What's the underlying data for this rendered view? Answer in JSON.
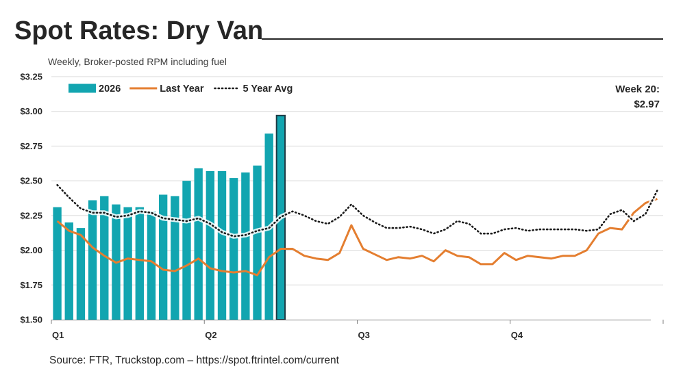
{
  "title": "Spot Rates: Dry Van",
  "subtitle": "Weekly, Broker-posted RPM including fuel",
  "source": "Source: FTR, Truckstop.com – https://spot.ftrintel.com/current",
  "callout": {
    "line1": "Week 20:",
    "line2": "$2.97"
  },
  "chart_data": {
    "type": "bar",
    "xlabel": "",
    "ylabel": "",
    "ylim": [
      1.5,
      3.25
    ],
    "yticks": [
      "$1.50",
      "$1.75",
      "$2.00",
      "$2.25",
      "$2.50",
      "$2.75",
      "$3.00",
      "$3.25"
    ],
    "ytick_values": [
      1.5,
      1.75,
      2.0,
      2.25,
      2.5,
      2.75,
      3.0,
      3.25
    ],
    "xlim": [
      0.5,
      52.5
    ],
    "quarters": [
      {
        "label": "Q1",
        "week": 1
      },
      {
        "label": "Q2",
        "week": 14
      },
      {
        "label": "Q3",
        "week": 27
      },
      {
        "label": "Q4",
        "week": 40
      }
    ],
    "grid": true,
    "legend_position": "top-left",
    "colors": {
      "bars": "#12A5B0",
      "highlight_border": "#1F3A44",
      "last_year": "#E47E30",
      "five_year": "#1A1A1A",
      "grid": "#D9D9D9"
    },
    "series": [
      {
        "name": "2026",
        "kind": "bar",
        "x_start": 1,
        "values": [
          2.31,
          2.2,
          2.16,
          2.36,
          2.39,
          2.33,
          2.31,
          2.31,
          2.28,
          2.4,
          2.39,
          2.5,
          2.59,
          2.57,
          2.57,
          2.52,
          2.56,
          2.61,
          2.84,
          2.97
        ],
        "highlight_index": 19
      },
      {
        "name": "Last Year",
        "kind": "line",
        "x_start": 1,
        "values": [
          2.21,
          2.14,
          2.11,
          2.02,
          1.96,
          1.91,
          1.94,
          1.93,
          1.92,
          1.86,
          1.85,
          1.89,
          1.94,
          1.87,
          1.85,
          1.84,
          1.85,
          1.82,
          1.95,
          2.01,
          2.01,
          1.96,
          1.94,
          1.93,
          1.98,
          2.18,
          2.01,
          1.97,
          1.93,
          1.95,
          1.94,
          1.96,
          1.92,
          2.0,
          1.96,
          1.95,
          1.9,
          1.9,
          1.98,
          1.93,
          1.96,
          1.95,
          1.94,
          1.96,
          1.96,
          2.0,
          2.12,
          2.16,
          2.15,
          2.27,
          2.34,
          2.37
        ]
      },
      {
        "name": "5 Year Avg",
        "kind": "line",
        "x_start": 1,
        "values": [
          2.47,
          2.38,
          2.3,
          2.27,
          2.27,
          2.24,
          2.25,
          2.28,
          2.27,
          2.23,
          2.22,
          2.21,
          2.23,
          2.19,
          2.13,
          2.1,
          2.11,
          2.14,
          2.16,
          2.24,
          2.28,
          2.25,
          2.21,
          2.19,
          2.24,
          2.33,
          2.25,
          2.2,
          2.16,
          2.16,
          2.17,
          2.15,
          2.12,
          2.15,
          2.21,
          2.19,
          2.12,
          2.12,
          2.15,
          2.16,
          2.14,
          2.15,
          2.15,
          2.15,
          2.15,
          2.14,
          2.15,
          2.26,
          2.29,
          2.21,
          2.26,
          2.43
        ]
      }
    ]
  }
}
